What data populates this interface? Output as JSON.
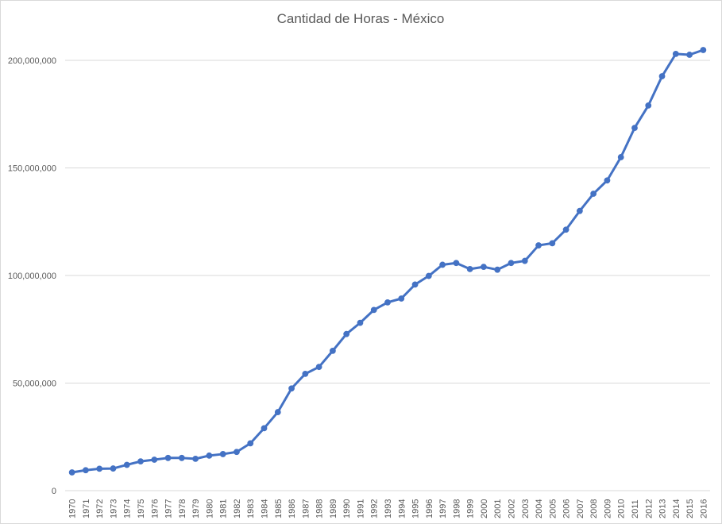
{
  "chart_data": {
    "type": "line",
    "title": "Cantidad de Horas - México",
    "xlabel": "",
    "ylabel": "",
    "ylim": [
      0,
      200000000
    ],
    "yticks": [
      0,
      50000000,
      100000000,
      150000000,
      200000000
    ],
    "ytick_labels": [
      "0",
      "50,000,000",
      "100,000,000",
      "150,000,000",
      "200,000,000"
    ],
    "grid": true,
    "legend": "none",
    "color": "#4472c4",
    "x": [
      "1970",
      "1971",
      "1972",
      "1973",
      "1974",
      "1975",
      "1976",
      "1977",
      "1978",
      "1979",
      "1980",
      "1981",
      "1982",
      "1983",
      "1984",
      "1985",
      "1986",
      "1987",
      "1988",
      "1989",
      "1990",
      "1991",
      "1992",
      "1993",
      "1994",
      "1995",
      "1996",
      "1997",
      "1998",
      "1999",
      "2000",
      "2001",
      "2002",
      "2003",
      "2004",
      "2005",
      "2006",
      "2007",
      "2008",
      "2009",
      "2010",
      "2011",
      "2012",
      "2013",
      "2014",
      "2015",
      "2016"
    ],
    "series": [
      {
        "values": [
          8500000,
          9500000,
          10200000,
          10300000,
          12000000,
          13600000,
          14400000,
          15200000,
          15200000,
          14800000,
          16300000,
          17000000,
          18000000,
          22000000,
          29000000,
          36500000,
          47500000,
          54300000,
          57500000,
          65000000,
          72800000,
          78000000,
          84000000,
          87500000,
          89300000,
          95800000,
          99800000,
          105000000,
          105800000,
          103000000,
          104000000,
          102700000,
          105800000,
          106800000,
          114000000,
          115000000,
          121300000,
          130000000,
          138000000,
          144200000,
          155000000,
          168600000,
          179000000,
          192600000,
          203000000,
          202600000,
          204800000
        ]
      }
    ]
  }
}
